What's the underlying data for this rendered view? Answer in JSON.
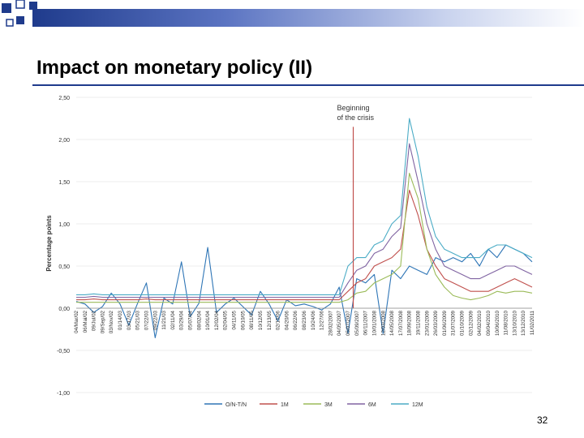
{
  "slide": {
    "title": "Impact on monetary policy (II)",
    "page_number": "32"
  },
  "colors": {
    "accent": "#1f3b8c",
    "series_on_tn": "#2e75b6",
    "series_1m": "#c0504d",
    "series_3m": "#9bbb59",
    "series_6m": "#8064a2",
    "series_12m": "#4bacc6",
    "crisis_line": "#c0504d"
  },
  "chart_data": {
    "type": "line",
    "title": "",
    "xlabel": "",
    "ylabel": "Percentage points",
    "ylim": [
      -1.0,
      2.5
    ],
    "y_ticks": [
      "2,50",
      "2,00",
      "1,50",
      "1,00",
      "0,50",
      "0,00",
      "-0,50",
      "-1,00"
    ],
    "y_tick_values": [
      2.5,
      2.0,
      1.5,
      1.0,
      0.5,
      0.0,
      -0.5,
      -1.0
    ],
    "x_tick_labels": [
      "04/Mar/02",
      "06/Mai/02",
      "09/Jul/02",
      "09/Sep/02",
      "03/Nov/02",
      "01/14/03",
      "03/17/03",
      "05/21/03",
      "07/22/03",
      "09/22/03",
      "11/21/03",
      "02/11/04",
      "03/29/04",
      "05/07/04",
      "08/02/04",
      "10/01/04",
      "12/02/04",
      "02/04/05",
      "04/11/05",
      "06/10/05",
      "08/11/05",
      "10/12/05",
      "12/13/05",
      "02/15/06",
      "04/20/06",
      "06/22/06",
      "08/23/06",
      "10/24/06",
      "12/27/06",
      "28/02/2007",
      "04/05/2007",
      "05/07/2007",
      "05/09/2007",
      "06/11/2007",
      "10/01/2008",
      "12/03/2008",
      "14/05/2008",
      "17/07/2008",
      "18/09/2008",
      "19/11/2008",
      "23/01/2009",
      "26/03/2009",
      "01/06/2009",
      "31/07/2009",
      "01/10/2009",
      "02/12/2009",
      "04/02/2010",
      "09/04/2010",
      "10/06/2010",
      "11/08/2010",
      "13/10/2010",
      "13/12/2010",
      "11/02/2011"
    ],
    "annotation": {
      "text_line1": "Beginning",
      "text_line2": "of the crisis",
      "x_index": 31.6,
      "peak_value": 2.15
    },
    "series": [
      {
        "name": "O/N-T/N",
        "color": "#2e75b6",
        "values": [
          0.08,
          0.05,
          -0.05,
          0.02,
          0.18,
          0.05,
          -0.2,
          0.06,
          0.3,
          -0.35,
          0.12,
          0.05,
          0.55,
          -0.1,
          0.06,
          0.72,
          -0.05,
          0.05,
          0.12,
          0.02,
          -0.08,
          0.2,
          0.05,
          -0.15,
          0.1,
          0.03,
          0.05,
          0.02,
          -0.02,
          0.05,
          0.25,
          -0.3,
          0.35,
          0.3,
          0.4,
          -0.3,
          0.45,
          0.35,
          0.5,
          0.45,
          0.4,
          0.6,
          0.55,
          0.6,
          0.55,
          0.65,
          0.5,
          0.7,
          0.6,
          0.75,
          0.7,
          0.65,
          0.55
        ]
      },
      {
        "name": "1M",
        "color": "#c0504d",
        "values": [
          0.1,
          0.1,
          0.11,
          0.1,
          0.1,
          0.1,
          0.1,
          0.1,
          0.11,
          0.1,
          0.1,
          0.1,
          0.1,
          0.1,
          0.1,
          0.1,
          0.1,
          0.1,
          0.1,
          0.1,
          0.1,
          0.1,
          0.1,
          0.1,
          0.1,
          0.1,
          0.1,
          0.1,
          0.1,
          0.1,
          0.1,
          0.2,
          0.3,
          0.35,
          0.5,
          0.55,
          0.6,
          0.7,
          1.4,
          1.1,
          0.7,
          0.5,
          0.35,
          0.3,
          0.25,
          0.2,
          0.2,
          0.2,
          0.25,
          0.3,
          0.35,
          0.3,
          0.25
        ]
      },
      {
        "name": "3M",
        "color": "#9bbb59",
        "values": [
          0.07,
          0.07,
          0.07,
          0.07,
          0.07,
          0.07,
          0.07,
          0.07,
          0.07,
          0.07,
          0.07,
          0.07,
          0.07,
          0.07,
          0.07,
          0.07,
          0.07,
          0.07,
          0.07,
          0.07,
          0.07,
          0.07,
          0.07,
          0.07,
          0.07,
          0.07,
          0.07,
          0.07,
          0.07,
          0.07,
          0.07,
          0.1,
          0.18,
          0.2,
          0.3,
          0.35,
          0.4,
          0.5,
          1.6,
          1.3,
          0.7,
          0.4,
          0.25,
          0.15,
          0.12,
          0.1,
          0.12,
          0.15,
          0.2,
          0.18,
          0.2,
          0.2,
          0.18
        ]
      },
      {
        "name": "6M",
        "color": "#8064a2",
        "values": [
          0.13,
          0.13,
          0.14,
          0.13,
          0.13,
          0.13,
          0.13,
          0.13,
          0.13,
          0.13,
          0.13,
          0.13,
          0.13,
          0.13,
          0.13,
          0.13,
          0.13,
          0.13,
          0.13,
          0.13,
          0.13,
          0.13,
          0.13,
          0.13,
          0.13,
          0.13,
          0.13,
          0.13,
          0.13,
          0.13,
          0.13,
          0.3,
          0.45,
          0.5,
          0.65,
          0.7,
          0.85,
          0.95,
          1.95,
          1.5,
          1.0,
          0.7,
          0.5,
          0.45,
          0.4,
          0.35,
          0.35,
          0.4,
          0.45,
          0.5,
          0.5,
          0.45,
          0.4
        ]
      },
      {
        "name": "12M",
        "color": "#4bacc6",
        "values": [
          0.16,
          0.16,
          0.17,
          0.16,
          0.16,
          0.16,
          0.16,
          0.16,
          0.16,
          0.16,
          0.16,
          0.16,
          0.16,
          0.16,
          0.16,
          0.16,
          0.16,
          0.16,
          0.16,
          0.16,
          0.16,
          0.16,
          0.16,
          0.16,
          0.16,
          0.16,
          0.16,
          0.16,
          0.16,
          0.16,
          0.16,
          0.5,
          0.6,
          0.6,
          0.75,
          0.8,
          1.0,
          1.1,
          2.25,
          1.8,
          1.2,
          0.85,
          0.7,
          0.65,
          0.6,
          0.6,
          0.6,
          0.7,
          0.75,
          0.75,
          0.7,
          0.65,
          0.6
        ]
      }
    ]
  }
}
